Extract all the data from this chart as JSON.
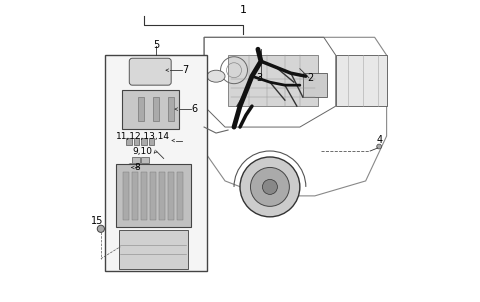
{
  "background_color": "#ffffff",
  "figure_width": 4.8,
  "figure_height": 3.02,
  "dpi": 100,
  "line_color": "#000000",
  "harness_color": "#111111",
  "label_fontsize": 7,
  "bracket_color": "#333333"
}
